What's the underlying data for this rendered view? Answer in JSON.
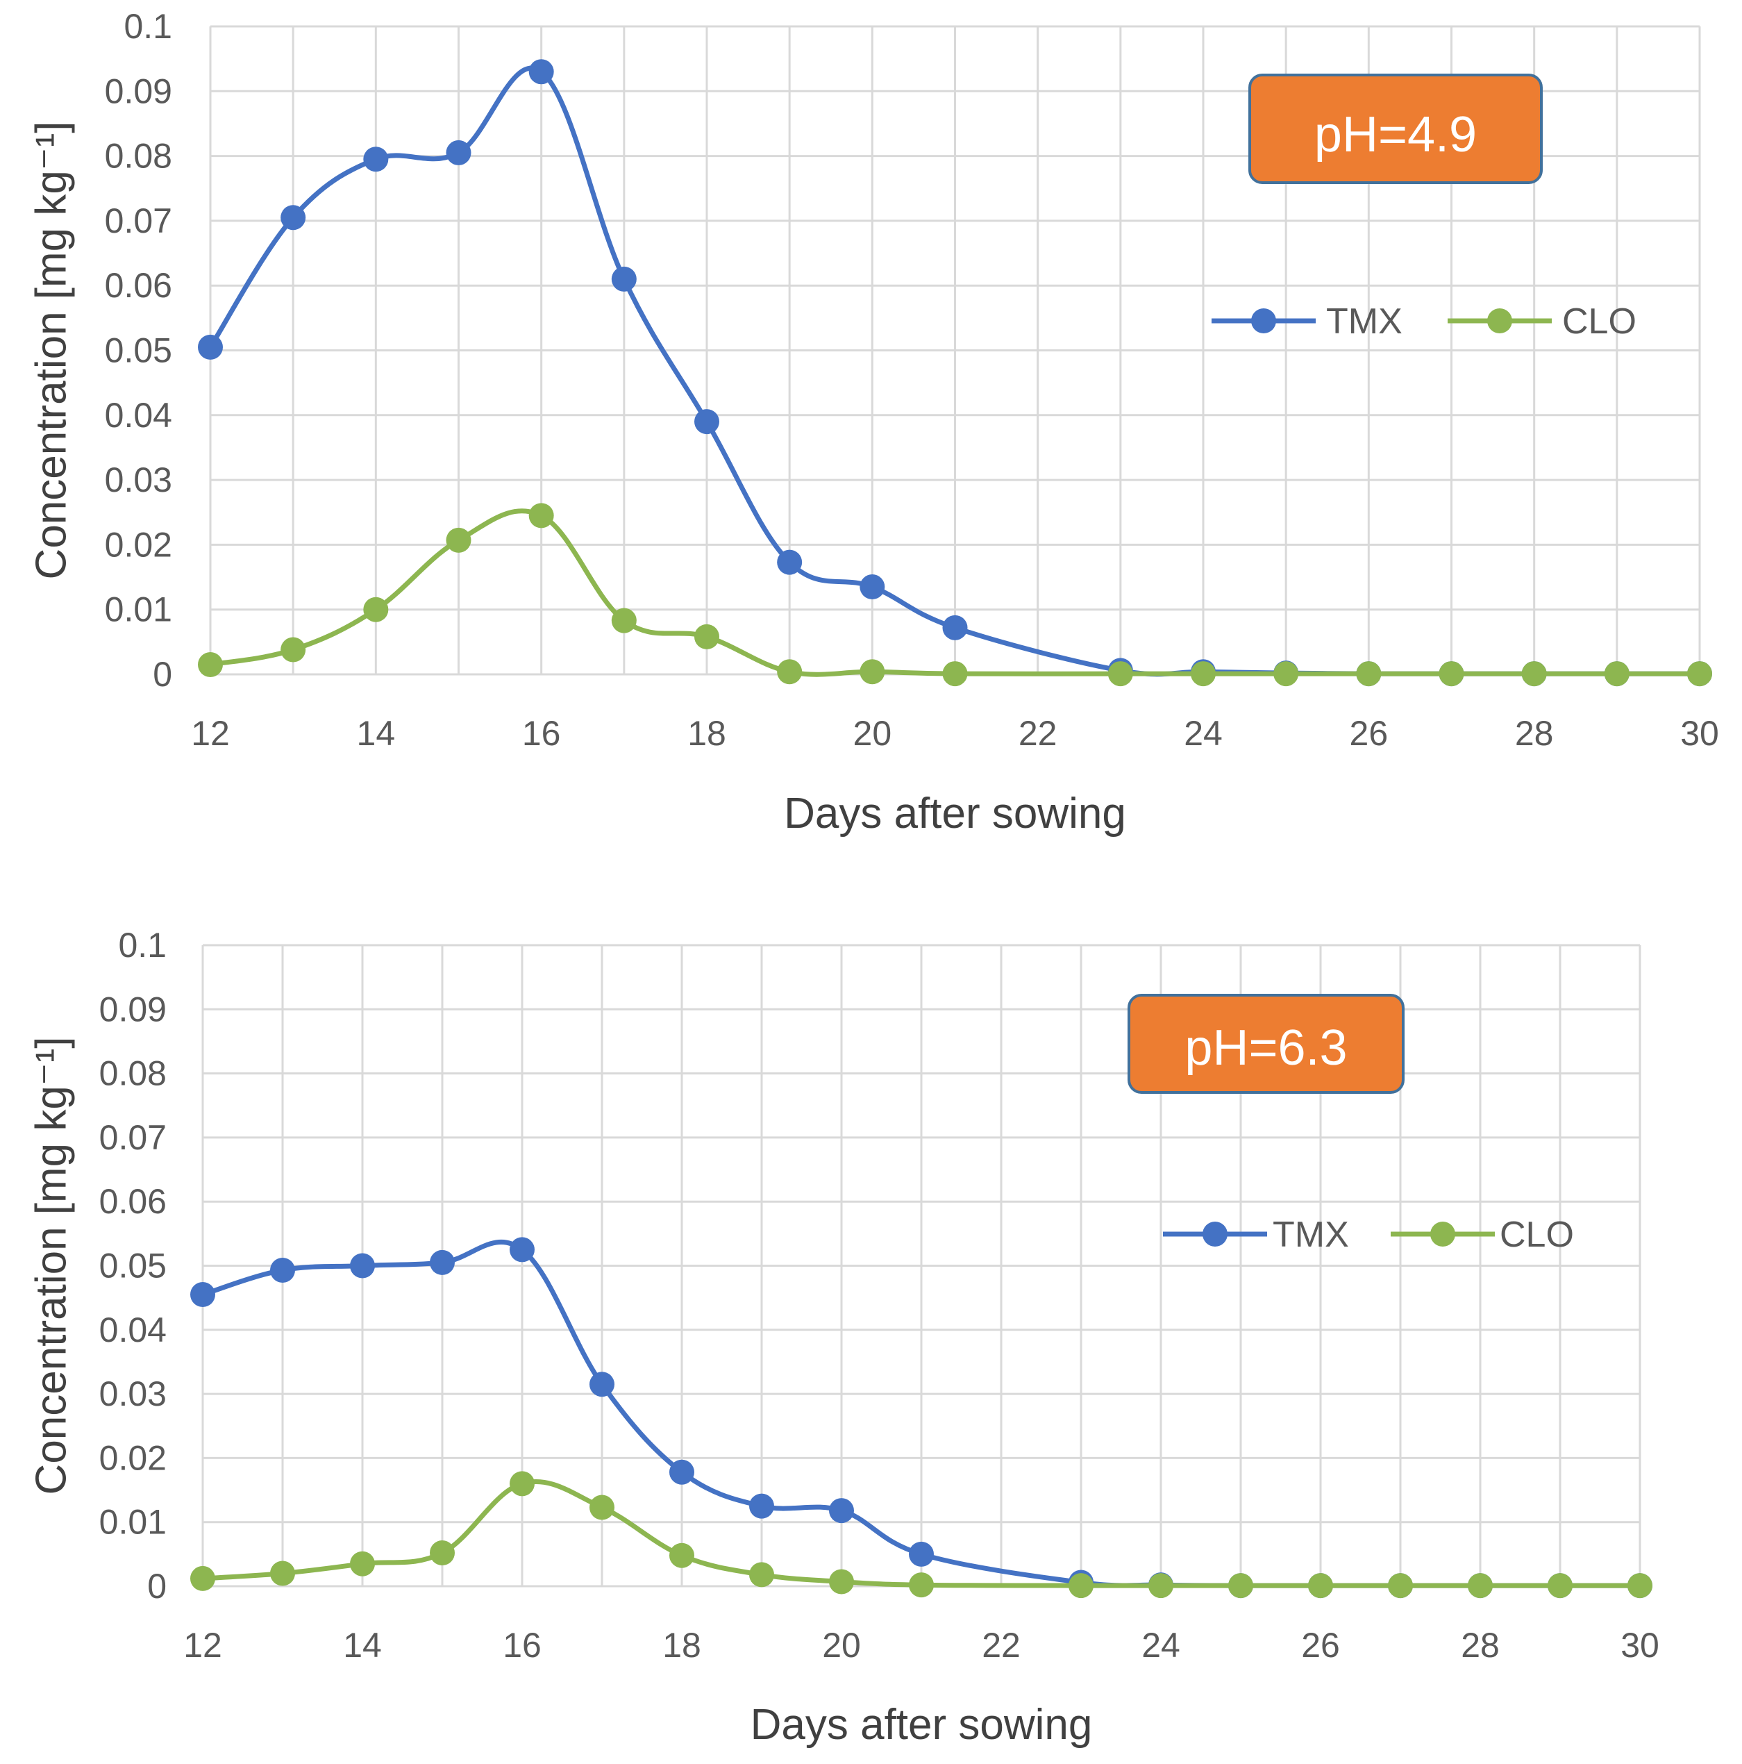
{
  "colors": {
    "tmx": "#4472C4",
    "clo": "#8DB650",
    "grid": "#D9D9D9",
    "badge_fill": "#ED7D31",
    "badge_stroke": "#41719C"
  },
  "chart_data": [
    {
      "type": "line",
      "title": "",
      "badge": "pH=4.9",
      "xlabel": "Days after sowing",
      "ylabel": "Concentration [mg kg⁻¹]",
      "xlim": [
        12,
        30
      ],
      "ylim": [
        0,
        0.1
      ],
      "xticks": [
        "12",
        "14",
        "16",
        "18",
        "20",
        "22",
        "24",
        "26",
        "28",
        "30"
      ],
      "yticks": [
        "0",
        "0.01",
        "0.02",
        "0.03",
        "0.04",
        "0.05",
        "0.06",
        "0.07",
        "0.08",
        "0.09",
        "0.1"
      ],
      "legend_position": "upper-right",
      "series": [
        {
          "name": "TMX",
          "x": [
            12,
            13,
            14,
            15,
            16,
            17,
            18,
            19,
            20,
            21,
            23,
            24,
            25,
            26,
            27,
            28,
            29,
            30
          ],
          "values": [
            0.0505,
            0.0705,
            0.0795,
            0.0805,
            0.093,
            0.061,
            0.039,
            0.0173,
            0.0135,
            0.0072,
            0.0006,
            0.0004,
            0.0002,
            0.0001,
            0.0001,
            0.0001,
            0.0001,
            0.0001
          ]
        },
        {
          "name": "CLO",
          "x": [
            12,
            13,
            14,
            15,
            16,
            17,
            18,
            19,
            20,
            21,
            23,
            24,
            25,
            26,
            27,
            28,
            29,
            30
          ],
          "values": [
            0.0015,
            0.0038,
            0.01,
            0.0207,
            0.0245,
            0.0083,
            0.0058,
            0.0004,
            0.0004,
            0.0001,
            0.0001,
            0.0001,
            0.0001,
            0.0001,
            0.0001,
            0.0001,
            0.0001,
            0.0001
          ]
        }
      ]
    },
    {
      "type": "line",
      "title": "",
      "badge": "pH=6.3",
      "xlabel": "Days after sowing",
      "ylabel": "Concentration [mg kg⁻¹]",
      "xlim": [
        12,
        30
      ],
      "ylim": [
        0,
        0.1
      ],
      "xticks": [
        "12",
        "14",
        "16",
        "18",
        "20",
        "22",
        "24",
        "26",
        "28",
        "30"
      ],
      "yticks": [
        "0",
        "0.01",
        "0.02",
        "0.03",
        "0.04",
        "0.05",
        "0.06",
        "0.07",
        "0.08",
        "0.09",
        "0.1"
      ],
      "legend_position": "upper-right",
      "series": [
        {
          "name": "TMX",
          "x": [
            12,
            13,
            14,
            15,
            16,
            17,
            18,
            19,
            20,
            21,
            23,
            24,
            25,
            26,
            27,
            28,
            29,
            30
          ],
          "values": [
            0.0455,
            0.0493,
            0.05,
            0.0505,
            0.0525,
            0.0315,
            0.0178,
            0.0125,
            0.0118,
            0.005,
            0.0006,
            0.0002,
            0.0001,
            0.0001,
            0.0001,
            0.0001,
            0.0001,
            0.0001
          ]
        },
        {
          "name": "CLO",
          "x": [
            12,
            13,
            14,
            15,
            16,
            17,
            18,
            19,
            20,
            21,
            23,
            24,
            25,
            26,
            27,
            28,
            29,
            30
          ],
          "values": [
            0.0012,
            0.002,
            0.0035,
            0.0052,
            0.016,
            0.0123,
            0.0048,
            0.0018,
            0.0007,
            0.0002,
            0.0001,
            0.0001,
            0.0001,
            0.0001,
            0.0001,
            0.0001,
            0.0001,
            0.0001
          ]
        }
      ]
    }
  ]
}
